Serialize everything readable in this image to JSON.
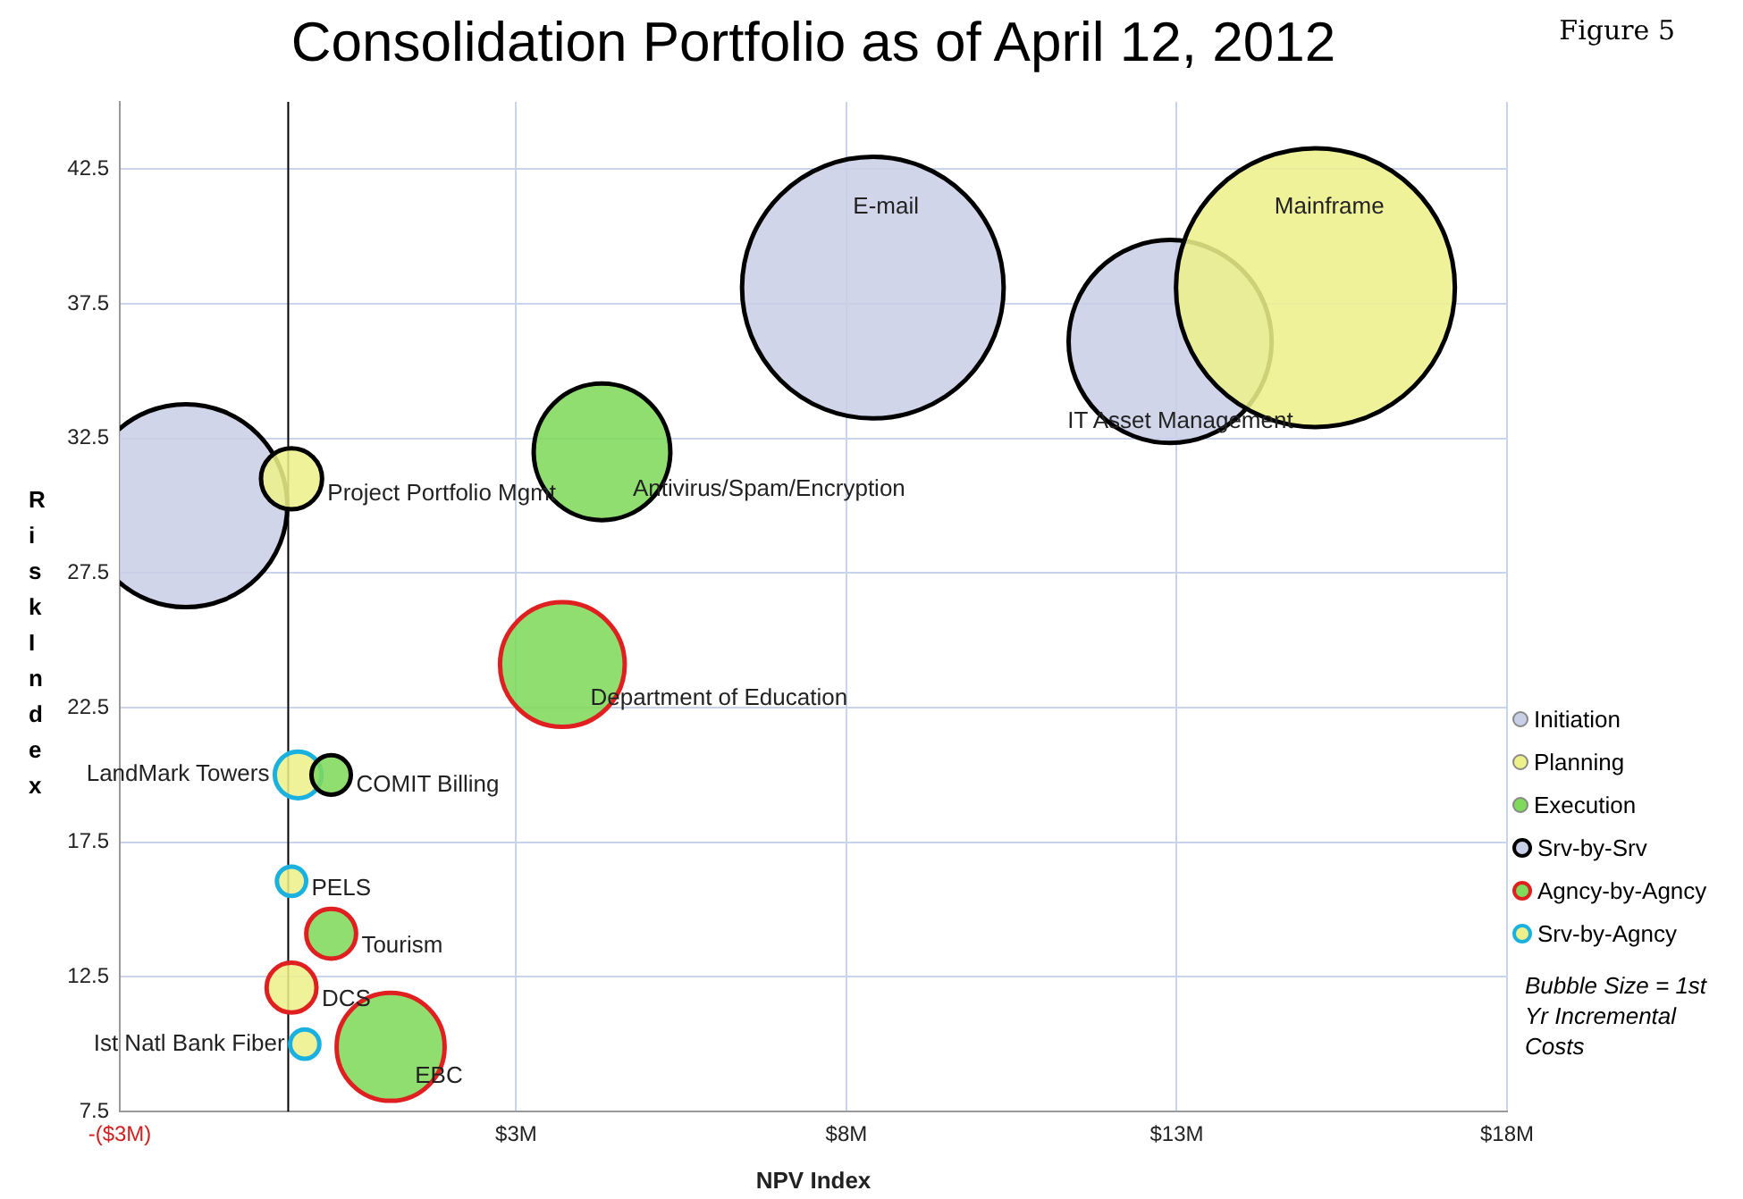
{
  "chart_data": {
    "type": "bubble",
    "title": "Consolidation Portfolio as of April 12, 2012",
    "xlabel": "NPV Index",
    "ylabel": "Risk Index",
    "xlim": [
      -3,
      18
    ],
    "xticks": [
      {
        "value": -3,
        "label": "-($3M)"
      },
      {
        "value": 3,
        "label": "$3M"
      },
      {
        "value": 8,
        "label": "$8M"
      },
      {
        "value": 13,
        "label": "$13M"
      },
      {
        "value": 18,
        "label": "$18M"
      }
    ],
    "ylim": [
      7.5,
      45
    ],
    "yticks": [
      7.5,
      12.5,
      17.5,
      22.5,
      27.5,
      32.5,
      37.5,
      42.5
    ],
    "grid": true,
    "legend": "right",
    "series": [
      {
        "name": "Initiation",
        "color": "#c9cfe6"
      },
      {
        "name": "Planning",
        "color": "#eef08a"
      },
      {
        "name": "Execution",
        "color": "#7fd95a"
      },
      {
        "name": "Srv-by-Srv",
        "color": "#000000",
        "x": [
          -2.0,
          -0.4,
          4.3,
          8.4,
          12.9,
          15.1,
          0.2
        ],
        "values": [
          30.0,
          31.0,
          32.0,
          38.1,
          36.1,
          38.1,
          20.0
        ],
        "sizes": [
          0.53,
          0.048,
          0.24,
          0.88,
          0.53,
          1,
          0.02
        ],
        "colors": [
          "#c9cfe6",
          "#eef08a",
          "#7fd95a",
          "#c9cfe6",
          "#c9cfe6",
          "#eef08a",
          "#7fd95a"
        ]
      },
      {
        "name": "Agncy-by-Agncy",
        "color": "#e02020",
        "x": [
          3.7,
          0.2,
          -0.4,
          1.1
        ],
        "values": [
          24.1,
          14.1,
          12.1,
          9.9
        ],
        "sizes": [
          0.2,
          0.032,
          0.032,
          0.15
        ],
        "colors": [
          "#7fd95a",
          "#7fd95a",
          "#eef08a",
          "#7fd95a"
        ]
      },
      {
        "name": "Srv-by-Agncy",
        "color": "#1ab0e0",
        "x": [
          -0.3,
          -0.4,
          -0.2
        ],
        "values": [
          20.0,
          16.05,
          10.0
        ],
        "sizes": [
          0.028,
          0.011,
          0.011
        ],
        "colors": [
          "#eef08a",
          "#eef08a",
          "#eef08a"
        ]
      }
    ],
    "ref_lines": [
      {
        "axis": "x",
        "value": -0.45,
        "color": "#000000"
      }
    ],
    "annotations": [
      {
        "text": "Project Portfolio Mgmt",
        "x": -0.4,
        "y": 31.0
      },
      {
        "text": "Antivirus/Spam/Encryption",
        "x": 4.3,
        "y": 32.0
      },
      {
        "text": "E-mail",
        "x": 8.4,
        "y": 38.1
      },
      {
        "text": "IT Asset Management",
        "x": 12.9,
        "y": 36.1
      },
      {
        "text": "Mainframe",
        "x": 15.1,
        "y": 38.1
      },
      {
        "text": "Department of Education",
        "x": 3.7,
        "y": 24.1
      },
      {
        "text": "LandMark Towers",
        "x": -0.3,
        "y": 20.0
      },
      {
        "text": "COMIT Billing",
        "x": 0.2,
        "y": 20.0
      },
      {
        "text": "PELS",
        "x": -0.4,
        "y": 16.05
      },
      {
        "text": "Tourism",
        "x": 0.2,
        "y": 14.1
      },
      {
        "text": "DCS",
        "x": -0.4,
        "y": 12.1
      },
      {
        "text": "Ist Natl Bank Fiber",
        "x": -0.2,
        "y": 10.0
      },
      {
        "text": "EBC",
        "x": 1.1,
        "y": 9.9
      },
      "Figure 5",
      "Bubble Size = 1st Yr Incremental Costs"
    ]
  }
}
